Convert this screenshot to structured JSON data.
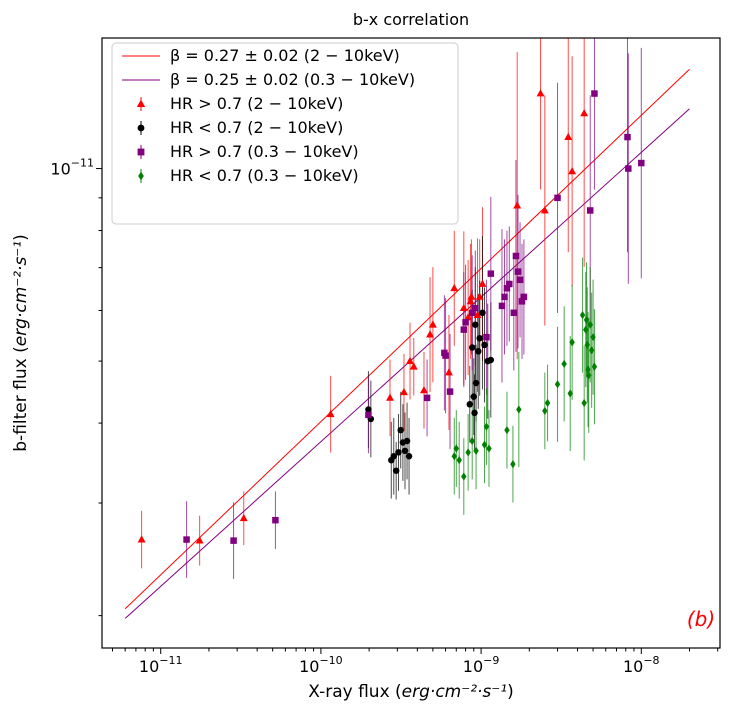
{
  "chart_data": {
    "type": "scatter",
    "title": "b-x correlation",
    "xlabel": {
      "prefix": "X-ray flux (",
      "units": "erg·cm⁻²·s⁻¹",
      "suffix": ")"
    },
    "ylabel": {
      "prefix": "b-filter flux (",
      "units": "erg·cm⁻²·s⁻¹",
      "suffix": ")"
    },
    "x_scale": "log",
    "y_scale": "log",
    "xlim": [
      4.3e-12,
      3.1e-08
    ],
    "ylim": [
      1.78e-12,
      1.6e-11
    ],
    "x_tick_labels": [
      {
        "value": 1e-11,
        "base": "10",
        "exp": "−11"
      },
      {
        "value": 1e-10,
        "base": "10",
        "exp": "−10"
      },
      {
        "value": 1e-09,
        "base": "10",
        "exp": "−9"
      },
      {
        "value": 1e-08,
        "base": "10",
        "exp": "−8"
      }
    ],
    "y_tick_labels": [
      {
        "value": 1e-11,
        "base": "10",
        "exp": "−11"
      }
    ],
    "grid": false,
    "legend_position": "top-left",
    "panel_label": "(b)",
    "fit_lines": [
      {
        "label": "β = 0.27 ± 0.02 (2 − 10keV)",
        "color": "#ff0000",
        "x": [
          6e-12,
          2e-08
        ],
        "y": [
          2.05e-12,
          1.43e-11
        ]
      },
      {
        "label": "β = 0.25 ± 0.02 (0.3 − 10keV)",
        "color": "#800080",
        "x": [
          6e-12,
          2e-08
        ],
        "y": [
          1.98e-12,
          1.24e-11
        ]
      }
    ],
    "series": [
      {
        "name": "HR > 0.7 (2 − 10keV)",
        "color": "#ff0000",
        "marker": "triangle",
        "points": [
          [
            7.6e-12,
            2.63e-12,
            0.15
          ],
          [
            1.75e-11,
            2.62e-12,
            0.13
          ],
          [
            3.3e-11,
            2.84e-12,
            0.14
          ],
          [
            1.15e-10,
            4.13e-12,
            0.2
          ],
          [
            2.7e-10,
            4.38e-12,
            0.2
          ],
          [
            3.3e-10,
            4.47e-12,
            0.2
          ],
          [
            3.6e-10,
            5e-12,
            0.2
          ],
          [
            3.8e-10,
            4.9e-12,
            0.15
          ],
          [
            4.4e-10,
            4.5e-12,
            0.2
          ],
          [
            4.8e-10,
            5.5e-12,
            0.3
          ],
          [
            5e-10,
            5.7e-12,
            0.3
          ],
          [
            6.3e-10,
            4.8e-12,
            0.3
          ],
          [
            6.8e-10,
            6.5e-12,
            0.3
          ],
          [
            7.8e-10,
            6.05e-12,
            0.4
          ],
          [
            8.3e-10,
            5.85e-12,
            0.3
          ],
          [
            8.6e-10,
            6.2e-12,
            0.3
          ],
          [
            8.7e-10,
            6.3e-12,
            0.3
          ],
          [
            9.5e-10,
            5.9e-12,
            0.4
          ],
          [
            9.8e-10,
            6.3e-12,
            0.3
          ],
          [
            1.02e-09,
            6.6e-12,
            0.4
          ],
          [
            1.68e-09,
            8.75e-12,
            0.8
          ],
          [
            2.35e-09,
            1.31e-11,
            0.5
          ],
          [
            2.5e-09,
            8.6e-12,
            0.6
          ],
          [
            3.5e-09,
            1.12e-11,
            0.6
          ],
          [
            3.7e-09,
            9.9e-12,
            0.6
          ],
          [
            4.4e-09,
            1.22e-11,
            0.8
          ]
        ]
      },
      {
        "name": "HR < 0.7 (2 − 10keV)",
        "color": "#000000",
        "marker": "circle",
        "points": [
          [
            1.98e-10,
            4.2e-12,
            0.2
          ],
          [
            2.05e-10,
            4.06e-12,
            0.2
          ],
          [
            2.75e-10,
            3.5e-12,
            0.2
          ],
          [
            2.85e-10,
            3.55e-12,
            0.2
          ],
          [
            2.95e-10,
            3.37e-12,
            0.15
          ],
          [
            3.05e-10,
            3.6e-12,
            0.2
          ],
          [
            3.25e-10,
            3.73e-12,
            0.2
          ],
          [
            3.35e-10,
            3.62e-12,
            0.2
          ],
          [
            3.45e-10,
            3.75e-12,
            0.2
          ],
          [
            3.55e-10,
            3.55e-12,
            0.2
          ],
          [
            8.5e-10,
            4.28e-12,
            0.2
          ],
          [
            9e-10,
            4.4e-12,
            0.2
          ],
          [
            9.1e-10,
            4.15e-12,
            0.2
          ],
          [
            9.3e-10,
            4.62e-12,
            0.2
          ],
          [
            9.6e-10,
            5.18e-12,
            0.3
          ],
          [
            9.8e-10,
            5.43e-12,
            0.3
          ],
          [
            1.02e-09,
            5.95e-12,
            0.4
          ],
          [
            1.05e-09,
            5.3e-12,
            0.3
          ],
          [
            1.1e-09,
            5e-12,
            0.3
          ],
          [
            1.15e-09,
            5.02e-12,
            0.3
          ],
          [
            9.2e-10,
            5.7e-12,
            0.3
          ],
          [
            8.8e-10,
            5.25e-12,
            0.3
          ],
          [
            3.15e-10,
            3.9e-12,
            0.2
          ]
        ]
      },
      {
        "name": "HR > 0.7 (0.3 − 10keV)",
        "color": "#800080",
        "marker": "square",
        "points": [
          [
            1.45e-11,
            2.63e-12,
            0.2
          ],
          [
            2.85e-11,
            2.62e-12,
            0.2
          ],
          [
            5.2e-11,
            2.82e-12,
            0.15
          ],
          [
            1.98e-10,
            4.12e-12,
            0.2
          ],
          [
            4.6e-10,
            4.38e-12,
            0.2
          ],
          [
            5.9e-10,
            5.15e-12,
            0.3
          ],
          [
            6e-10,
            5.1e-12,
            0.3
          ],
          [
            6.4e-10,
            4.48e-12,
            0.3
          ],
          [
            7.8e-10,
            5.6e-12,
            0.3
          ],
          [
            8e-10,
            5.75e-12,
            0.3
          ],
          [
            8.8e-10,
            5.95e-12,
            0.3
          ],
          [
            9.2e-10,
            6.05e-12,
            0.3
          ],
          [
            1.08e-09,
            5.45e-12,
            0.3
          ],
          [
            1.15e-09,
            6.85e-12,
            0.4
          ],
          [
            1.35e-09,
            6.1e-12,
            0.4
          ],
          [
            1.4e-09,
            6.3e-12,
            0.3
          ],
          [
            1.45e-09,
            6.5e-12,
            0.3
          ],
          [
            1.5e-09,
            6.6e-12,
            0.3
          ],
          [
            1.6e-09,
            5.95e-12,
            0.3
          ],
          [
            1.65e-09,
            7.3e-12,
            0.5
          ],
          [
            1.7e-09,
            6.9e-12,
            0.4
          ],
          [
            1.75e-09,
            6.7e-12,
            0.3
          ],
          [
            1.8e-09,
            6.2e-12,
            0.3
          ],
          [
            1.85e-09,
            6.3e-12,
            0.3
          ],
          [
            3e-09,
            9e-12,
            0.6
          ],
          [
            4.8e-09,
            8.6e-12,
            0.6
          ],
          [
            5.1e-09,
            1.31e-11,
            0.5
          ],
          [
            8.2e-09,
            1.12e-11,
            0.6
          ],
          [
            8.3e-09,
            1e-11,
            0.6
          ],
          [
            1e-08,
            1.02e-11,
            0.6
          ]
        ]
      },
      {
        "name": "HR < 0.7 (0.3 − 10keV)",
        "color": "#008000",
        "marker": "diamond",
        "points": [
          [
            6.8e-10,
            3.55e-12,
            0.2
          ],
          [
            7e-10,
            3.65e-12,
            0.2
          ],
          [
            7.3e-10,
            3.5e-12,
            0.2
          ],
          [
            7.8e-10,
            3.3e-12,
            0.2
          ],
          [
            8.3e-10,
            3.6e-12,
            0.2
          ],
          [
            8.8e-10,
            3.75e-12,
            0.2
          ],
          [
            9.3e-10,
            3.62e-12,
            0.2
          ],
          [
            1.05e-09,
            3.7e-12,
            0.2
          ],
          [
            1.08e-09,
            3.95e-12,
            0.2
          ],
          [
            1.12e-09,
            3.65e-12,
            0.2
          ],
          [
            1.45e-09,
            3.9e-12,
            0.2
          ],
          [
            1.58e-09,
            3.45e-12,
            0.2
          ],
          [
            1.72e-09,
            4.2e-12,
            0.3
          ],
          [
            2.5e-09,
            4.18e-12,
            0.2
          ],
          [
            2.6e-09,
            4.3e-12,
            0.2
          ],
          [
            3e-09,
            4.6e-12,
            0.3
          ],
          [
            3.3e-09,
            4.95e-12,
            0.3
          ],
          [
            3.6e-09,
            4.45e-12,
            0.3
          ],
          [
            3.7e-09,
            5.35e-12,
            0.3
          ],
          [
            4.3e-09,
            5.9e-12,
            0.3
          ],
          [
            4.4e-09,
            4.3e-12,
            0.3
          ],
          [
            4.5e-09,
            5.6e-12,
            0.3
          ],
          [
            4.6e-09,
            5.3e-12,
            0.3
          ],
          [
            4.7e-09,
            4.75e-12,
            0.3
          ],
          [
            4.8e-09,
            5.7e-12,
            0.3
          ],
          [
            4.9e-09,
            5.2e-12,
            0.3
          ],
          [
            5e-09,
            5.45e-12,
            0.3
          ],
          [
            5.1e-09,
            4.9e-12,
            0.3
          ],
          [
            4.65e-09,
            4.85e-12,
            0.3
          ],
          [
            4.55e-09,
            5.8e-12,
            0.3
          ]
        ]
      }
    ]
  }
}
